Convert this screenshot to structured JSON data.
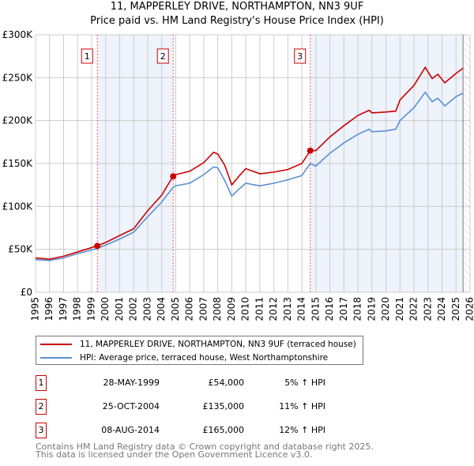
{
  "title": "11, MAPPERLEY DRIVE, NORTHAMPTON, NN3 9UF",
  "subtitle": "Price paid vs. HM Land Registry's House Price Index (HPI)",
  "chart_data": {
    "type": "line",
    "xlim": [
      1995,
      2026
    ],
    "ylim": [
      0,
      300000
    ],
    "x_ticks": [
      "1995",
      "1996",
      "1997",
      "1998",
      "1999",
      "2000",
      "2001",
      "2002",
      "2003",
      "2004",
      "2005",
      "2006",
      "2007",
      "2008",
      "2009",
      "2010",
      "2011",
      "2012",
      "2013",
      "2014",
      "2015",
      "2016",
      "2017",
      "2018",
      "2019",
      "2020",
      "2021",
      "2022",
      "2023",
      "2024",
      "2025",
      "2026"
    ],
    "y_ticks": [
      {
        "v": 0,
        "label": "£0"
      },
      {
        "v": 50000,
        "label": "£50K"
      },
      {
        "v": 100000,
        "label": "£100K"
      },
      {
        "v": 150000,
        "label": "£150K"
      },
      {
        "v": 200000,
        "label": "£200K"
      },
      {
        "v": 250000,
        "label": "£250K"
      },
      {
        "v": 300000,
        "label": "£300K"
      }
    ],
    "grid": true,
    "series": [
      {
        "name": "11, MAPPERLEY DRIVE, NORTHAMPTON, NN3 9UF (terraced house)",
        "color": "#cc0000",
        "x": [
          1995,
          1996,
          1997,
          1998,
          1999.4,
          2000,
          2001,
          2002,
          2003,
          2004,
          2004.8,
          2005,
          2006,
          2007,
          2007.7,
          2008,
          2008.5,
          2009,
          2009.5,
          2010,
          2011,
          2012,
          2013,
          2014,
          2014.6,
          2015,
          2016,
          2017,
          2018,
          2018.8,
          2019,
          2020,
          2020.7,
          2021,
          2022,
          2022.8,
          2023.3,
          2023.7,
          2024.2,
          2025,
          2025.5
        ],
        "y": [
          40000,
          38500,
          42000,
          47000,
          54000,
          58000,
          66000,
          74000,
          95000,
          113000,
          135000,
          137000,
          141000,
          151000,
          163000,
          161000,
          148000,
          125000,
          135000,
          144000,
          138000,
          140000,
          143000,
          150000,
          165000,
          165000,
          181000,
          194000,
          206000,
          212000,
          209000,
          210000,
          211000,
          224000,
          241000,
          262000,
          249000,
          254000,
          244000,
          255000,
          261000
        ]
      },
      {
        "name": "HPI: Average price, terraced house, West Northamptonshire",
        "color": "#5b8fd4",
        "x": [
          1995,
          1996,
          1997,
          1998,
          1999.4,
          2000,
          2001,
          2002,
          2003,
          2004,
          2004.8,
          2005,
          2006,
          2007,
          2007.7,
          2008,
          2008.5,
          2009,
          2009.5,
          2010,
          2011,
          2012,
          2013,
          2014,
          2014.6,
          2015,
          2016,
          2017,
          2018,
          2018.8,
          2019,
          2020,
          2020.7,
          2021,
          2022,
          2022.8,
          2023.3,
          2023.7,
          2024.2,
          2025,
          2025.5
        ],
        "y": [
          38000,
          37000,
          40000,
          45000,
          51000,
          55000,
          62000,
          70000,
          88000,
          105000,
          122000,
          124000,
          127000,
          137000,
          146000,
          145000,
          130000,
          112000,
          120000,
          127000,
          124000,
          127000,
          131000,
          136000,
          150000,
          147000,
          162000,
          174000,
          184000,
          190000,
          187000,
          188000,
          190000,
          200000,
          215000,
          233000,
          222000,
          226000,
          217000,
          228000,
          232000
        ]
      }
    ],
    "sales": [
      {
        "label": "1",
        "x": 1999.41,
        "y": 54000
      },
      {
        "label": "2",
        "x": 2004.82,
        "y": 135000
      },
      {
        "label": "3",
        "x": 2014.6,
        "y": 165000
      }
    ],
    "shaded_ranges": [
      [
        1999.41,
        2004.82
      ],
      [
        2014.6,
        2025.5
      ]
    ],
    "data_end": 2025.5,
    "legend_position": "below"
  },
  "legend": [
    {
      "label": "11, MAPPERLEY DRIVE, NORTHAMPTON, NN3 9UF (terraced house)",
      "color": "#cc0000"
    },
    {
      "label": "HPI: Average price, terraced house, West Northamptonshire",
      "color": "#5b8fd4"
    }
  ],
  "sales_table": [
    {
      "num": "1",
      "date": "28-MAY-1999",
      "price": "£54,000",
      "hpi": "5% ↑ HPI"
    },
    {
      "num": "2",
      "date": "25-OCT-2004",
      "price": "£135,000",
      "hpi": "11% ↑ HPI"
    },
    {
      "num": "3",
      "date": "08-AUG-2014",
      "price": "£165,000",
      "hpi": "12% ↑ HPI"
    }
  ],
  "footer": [
    "Contains HM Land Registry data © Crown copyright and database right 2025.",
    "This data is licensed under the Open Government Licence v3.0."
  ]
}
